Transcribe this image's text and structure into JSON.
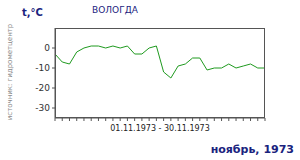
{
  "chart_data": {
    "type": "line",
    "title": "ВОЛОГДА",
    "ylabel": "t,°C",
    "xlabel": "01.11.1973 - 30.11.1973",
    "source": "источник: гидрометцентр",
    "period": "ноябрь, 1973",
    "categories": [
      null,
      null,
      null,
      null,
      null,
      null,
      null,
      null,
      null,
      null,
      null,
      null,
      null,
      null,
      null,
      null,
      null,
      null,
      null,
      null,
      null,
      null,
      null,
      null,
      null,
      null,
      null,
      null,
      null,
      null
    ],
    "values": [
      -3,
      -7,
      -8,
      -2,
      0,
      1,
      1,
      0,
      1,
      0,
      1,
      -3,
      -3,
      0,
      1,
      -12,
      -15,
      -9,
      -8,
      -5,
      -5,
      -11,
      -10,
      -10,
      -8,
      -10,
      -9,
      -8,
      -10,
      -10
    ],
    "color": "#1f9a1f",
    "ylim": [
      -35,
      10
    ],
    "yticks": [
      -30,
      -20,
      -10,
      0
    ],
    "grid": false,
    "tick_labels": "y"
  }
}
